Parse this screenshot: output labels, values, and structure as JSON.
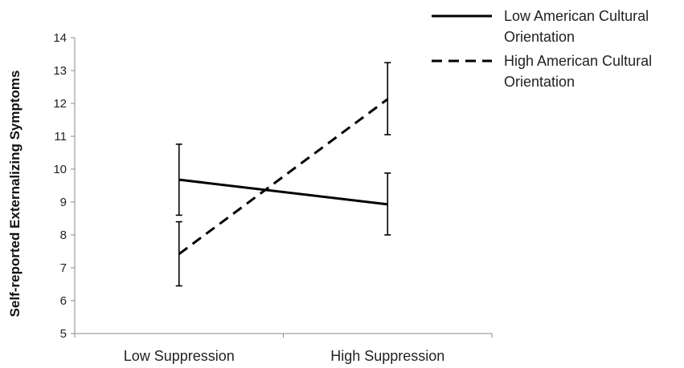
{
  "chart_data": {
    "type": "line",
    "categories": [
      "Low Suppression",
      "High Suppression"
    ],
    "ylabel": "Self-reported Externalizing Symptoms",
    "xlabel": "",
    "ylim": [
      5,
      14
    ],
    "yticks": [
      5,
      6,
      7,
      8,
      9,
      10,
      11,
      12,
      13,
      14
    ],
    "grid": false,
    "legend_position": "top-right",
    "series": [
      {
        "name": "Low American Cultural Orientation",
        "name_lines": [
          "Low American Cultural",
          "Orientation"
        ],
        "line_style": "solid",
        "color": "#000000",
        "values": [
          9.68,
          8.93
        ],
        "error_low": [
          8.6,
          8.0
        ],
        "error_high": [
          10.76,
          9.88
        ]
      },
      {
        "name": "High American Cultural Orientation",
        "name_lines": [
          "High American Cultural",
          "Orientation"
        ],
        "line_style": "dashed",
        "color": "#000000",
        "values": [
          7.42,
          12.13
        ],
        "error_low": [
          6.45,
          11.05
        ],
        "error_high": [
          8.4,
          13.24
        ]
      }
    ]
  }
}
